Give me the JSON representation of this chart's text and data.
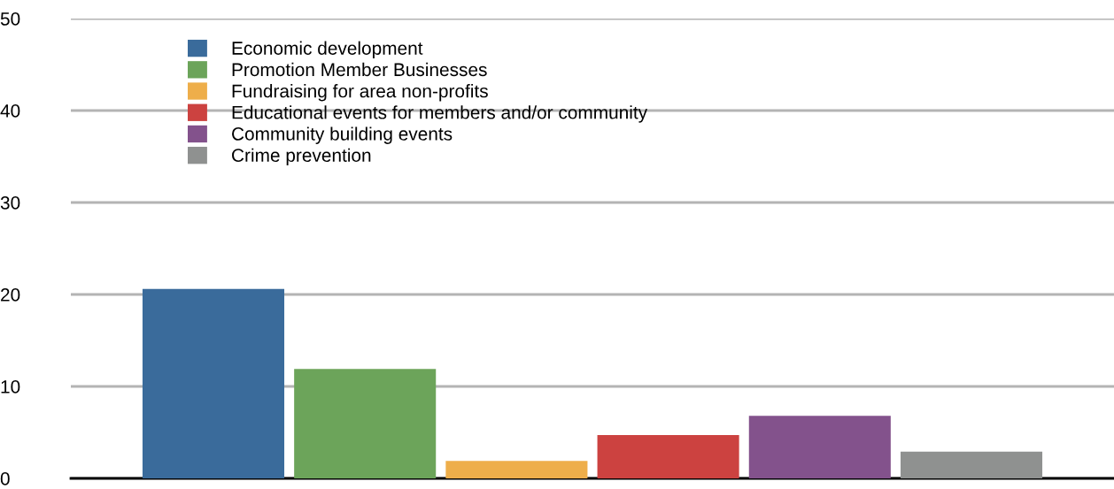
{
  "chart_data": {
    "type": "bar",
    "categories": [
      null
    ],
    "series": [
      {
        "name": "Economic development",
        "color": "#3a6b9b",
        "values": [
          20.6
        ]
      },
      {
        "name": "Promotion Member Businesses",
        "color": "#6ca45a",
        "values": [
          11.9
        ]
      },
      {
        "name": "Fundraising for area non-profits",
        "color": "#eeae4a",
        "values": [
          1.9
        ]
      },
      {
        "name": "Educational events for members and/or community",
        "color": "#cc4240",
        "values": [
          4.7
        ]
      },
      {
        "name": "Community building events",
        "color": "#83528c",
        "values": [
          6.8
        ]
      },
      {
        "name": "Crime prevention",
        "color": "#8f9190",
        "values": [
          2.9
        ]
      }
    ],
    "ylim": [
      0,
      50
    ],
    "yticks": [
      0,
      10,
      20,
      30,
      40,
      50
    ],
    "grid": "y",
    "legend": "top left",
    "tick_labels": "y"
  }
}
